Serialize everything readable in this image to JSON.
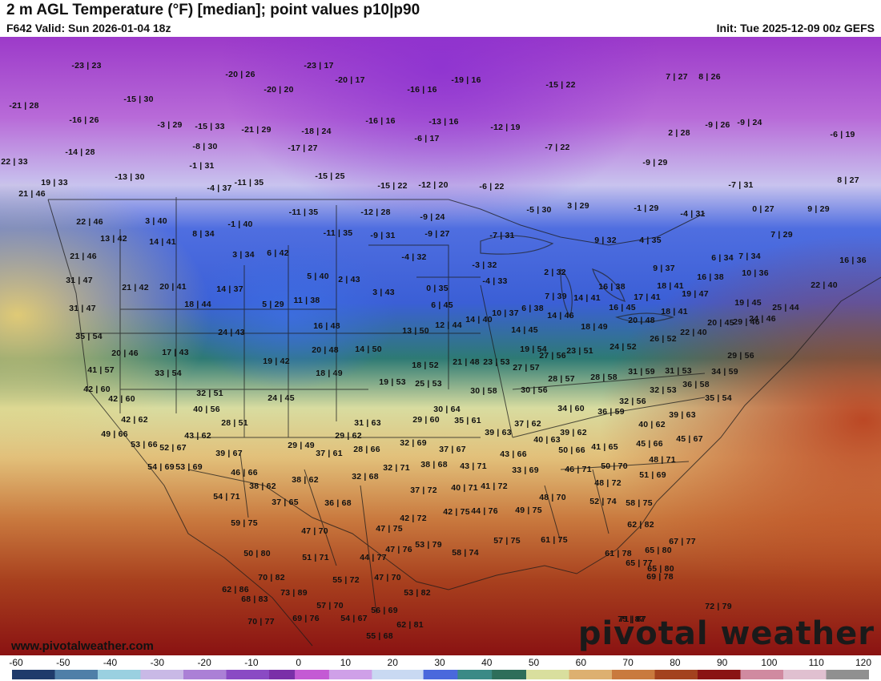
{
  "header": {
    "title": "2 m AGL Temperature (°F) [median]; point values p10|p90",
    "valid": "F642 Valid: Sun 2026-01-04 18z",
    "init": "Init: Tue 2025-12-09 00z GEFS"
  },
  "footer": {
    "website": "www.pivotalweather.com",
    "brand": "pivotal weather"
  },
  "legend": {
    "ticks": [
      "-60",
      "-50",
      "-40",
      "-30",
      "-20",
      "-10",
      "0",
      "10",
      "20",
      "30",
      "40",
      "50",
      "60",
      "70",
      "80",
      "90",
      "100",
      "110",
      "120"
    ]
  },
  "colors": {
    "very_cold": "#8a3fbf",
    "cold_purple": "#b06ed6",
    "freezing_blue": "#3f63d8",
    "cool_teal": "#2f7a72",
    "mild_yellow": "#e8e3a0",
    "warm_orange": "#c9783f",
    "hot_red": "#8a1414"
  },
  "point_values": [
    "-23 | 23",
    "-20 | 26",
    "-23 | 17",
    "-20 | 17",
    "-19 | 16",
    "-15 | 22",
    "7 | 27",
    "8 | 26",
    "-21 | 28",
    "-15 | 30",
    "-20 | 20",
    "-16 | 16",
    "-16 | 26",
    "-3 | 29",
    "-15 | 33",
    "-21 | 29",
    "-18 | 24",
    "-16 | 16",
    "-13 | 16",
    "-12 | 19",
    "2 | 28",
    "-9 | 26",
    "-9 | 24",
    "-6 | 19",
    "-14 | 28",
    "-8 | 30",
    "-17 | 27",
    "-6 | 17",
    "-7 | 22",
    "22 | 33",
    "-1 | 31",
    "-15 | 25",
    "-9 | 29",
    "19 | 33",
    "-13 | 30",
    "-4 | 37",
    "-11 | 35",
    "-15 | 22",
    "-12 | 20",
    "-6 | 22",
    "-7 | 31",
    "8 | 27",
    "21 | 46",
    "-11 | 35",
    "-12 | 28",
    "-9 | 24",
    "-5 | 30",
    "3 | 29",
    "-1 | 29",
    "-4 | 31",
    "0 | 27",
    "9 | 29",
    "22 | 46",
    "3 | 40",
    "8 | 34",
    "-1 | 40",
    "-11 | 35",
    "-9 | 31",
    "-9 | 27",
    "-7 | 31",
    "9 | 32",
    "4 | 35",
    "7 | 29",
    "13 | 42",
    "14 | 41",
    "3 | 34",
    "6 | 42",
    "-4 | 32",
    "-3 | 32",
    "6 | 34",
    "7 | 34",
    "21 | 46",
    "2 | 32",
    "9 | 37",
    "16 | 38",
    "16 | 36",
    "31 | 47",
    "5 | 40",
    "2 | 43",
    "-4 | 33",
    "10 | 36",
    "21 | 42",
    "20 | 41",
    "14 | 37",
    "0 | 35",
    "16 | 38",
    "18 | 41",
    "22 | 40",
    "11 | 38",
    "3 | 43",
    "7 | 39",
    "14 | 41",
    "17 | 41",
    "19 | 47",
    "19 | 45",
    "31 | 47",
    "18 | 44",
    "5 | 29",
    "6 | 45",
    "10 | 37",
    "6 | 38",
    "16 | 45",
    "18 | 41",
    "25 | 44",
    "12 | 44",
    "14 | 40",
    "14 | 46",
    "20 | 48",
    "24 | 46",
    "35 | 54",
    "24 | 43",
    "16 | 48",
    "13 | 50",
    "14 | 45",
    "18 | 49",
    "22 | 40",
    "20 | 45",
    "29 | 46",
    "20 | 46",
    "17 | 43",
    "20 | 48",
    "14 | 50",
    "19 | 54",
    "23 | 51",
    "24 | 52",
    "26 | 52",
    "41 | 57",
    "19 | 42",
    "18 | 52",
    "21 | 48",
    "23 | 53",
    "27 | 57",
    "27 | 56",
    "29 | 56",
    "33 | 54",
    "18 | 49",
    "28 | 57",
    "28 | 58",
    "31 | 59",
    "31 | 53",
    "34 | 59",
    "42 | 60",
    "19 | 53",
    "25 | 53",
    "30 | 58",
    "30 | 56",
    "36 | 58",
    "32 | 51",
    "42 | 60",
    "24 | 45",
    "32 | 53",
    "35 | 54",
    "34 | 60",
    "32 | 56",
    "40 | 56",
    "30 | 64",
    "36 | 59",
    "39 | 63",
    "42 | 62",
    "28 | 51",
    "29 | 60",
    "35 | 61",
    "31 | 63",
    "37 | 62",
    "40 | 62",
    "49 | 66",
    "43 | 62",
    "29 | 49",
    "29 | 62",
    "39 | 63",
    "40 | 63",
    "39 | 62",
    "45 | 66",
    "53 | 66",
    "52 | 67",
    "32 | 69",
    "41 | 65",
    "45 | 67",
    "37 | 61",
    "28 | 66",
    "37 | 67",
    "43 | 66",
    "50 | 66",
    "39 | 67",
    "48 | 71",
    "54 | 69",
    "53 | 69",
    "46 | 66",
    "38 | 68",
    "43 | 71",
    "46 | 71",
    "50 | 70",
    "32 | 71",
    "32 | 68",
    "33 | 69",
    "51 | 69",
    "38 | 62",
    "38 | 62",
    "48 | 72",
    "40 | 71",
    "41 | 72",
    "54 | 71",
    "37 | 72",
    "37 | 65",
    "36 | 68",
    "48 | 70",
    "52 | 74",
    "58 | 75",
    "44 | 76",
    "49 | 75",
    "42 | 72",
    "42 | 75",
    "59 | 75",
    "62 | 82",
    "47 | 70",
    "47 | 75",
    "57 | 75",
    "61 | 75",
    "61 | 78",
    "65 | 80",
    "58 | 74",
    "53 | 79",
    "47 | 76",
    "65 | 80",
    "51 | 71",
    "44 | 77",
    "65 | 77",
    "67 | 77",
    "70 | 82",
    "50 | 80",
    "69 | 78",
    "62 | 86",
    "55 | 72",
    "47 | 70",
    "53 | 82",
    "73 | 89",
    "68 | 83",
    "71 | 87",
    "57 | 70",
    "72 | 79",
    "56 | 69",
    "54 | 67",
    "69 | 76",
    "70 | 77",
    "62 | 81",
    "75 | 87",
    "55 | 68"
  ]
}
